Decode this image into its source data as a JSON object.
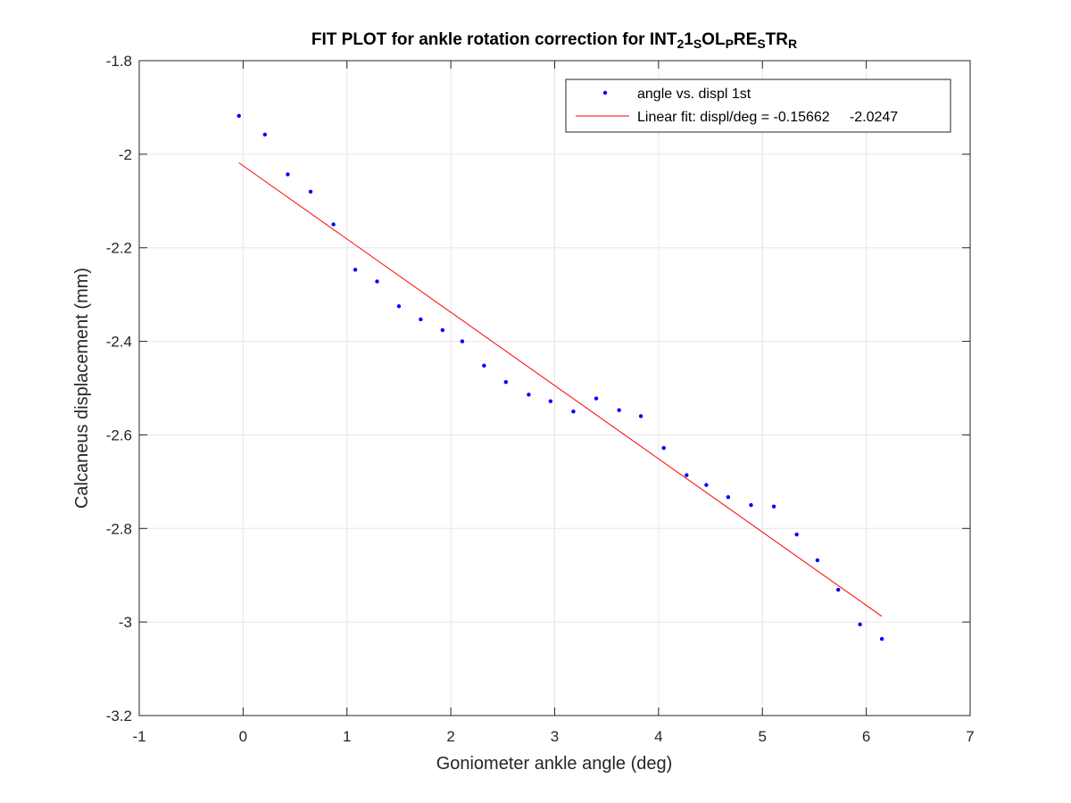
{
  "chart_data": {
    "type": "scatter",
    "title": {
      "parts": [
        {
          "text": "FIT PLOT for ankle rotation correction for INT",
          "sub": false
        },
        {
          "text": "2",
          "sub": true
        },
        {
          "text": "1",
          "sub": false
        },
        {
          "text": "S",
          "sub": true
        },
        {
          "text": "OL",
          "sub": false
        },
        {
          "text": "P",
          "sub": true
        },
        {
          "text": "RE",
          "sub": false
        },
        {
          "text": "S",
          "sub": true
        },
        {
          "text": "TR",
          "sub": false
        },
        {
          "text": "R",
          "sub": true
        }
      ]
    },
    "xlabel": "Goniometer ankle angle (deg)",
    "ylabel": "Calcaneus displacement (mm)",
    "xlim": [
      -1,
      7
    ],
    "ylim": [
      -3.2,
      -1.8
    ],
    "xticks": [
      -1,
      0,
      1,
      2,
      3,
      4,
      5,
      6,
      7
    ],
    "yticks": [
      -3.2,
      -3,
      -2.8,
      -2.6,
      -2.4,
      -2.2,
      -2,
      -1.8
    ],
    "grid": true,
    "legend_position": "top-right",
    "series": [
      {
        "name": "angle vs. displ 1st",
        "kind": "points",
        "color": "#0000ff",
        "x": [
          -0.04,
          0.21,
          0.43,
          0.65,
          0.87,
          1.08,
          1.29,
          1.5,
          1.71,
          1.92,
          2.11,
          2.32,
          2.53,
          2.75,
          2.96,
          3.18,
          3.4,
          3.62,
          3.83,
          4.05,
          4.27,
          4.46,
          4.67,
          4.89,
          5.11,
          5.33,
          5.53,
          5.73,
          5.94,
          6.15
        ],
        "y": [
          -1.918,
          -1.958,
          -2.043,
          -2.08,
          -2.15,
          -2.247,
          -2.272,
          -2.325,
          -2.353,
          -2.376,
          -2.4,
          -2.452,
          -2.487,
          -2.514,
          -2.528,
          -2.55,
          -2.522,
          -2.547,
          -2.56,
          -2.628,
          -2.686,
          -2.707,
          -2.733,
          -2.75,
          -2.753,
          -2.813,
          -2.868,
          -2.931,
          -3.005,
          -3.036
        ]
      },
      {
        "name": "Linear fit: displ/deg = -0.15662     -2.0247",
        "kind": "line",
        "color": "#ff0000",
        "x": [
          -0.04,
          6.15
        ],
        "y": [
          -2.0184,
          -2.9879
        ]
      }
    ]
  }
}
